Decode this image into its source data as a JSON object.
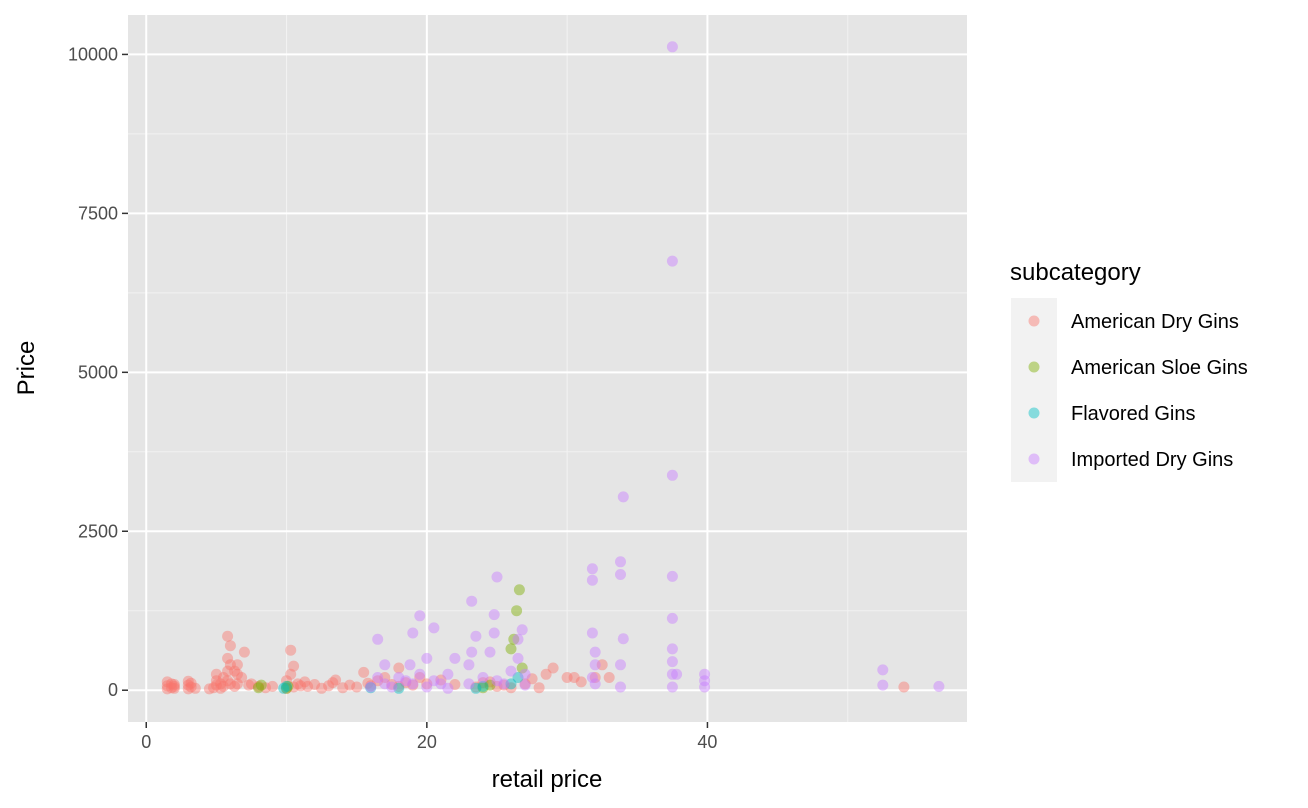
{
  "chart_data": {
    "type": "scatter",
    "xlabel": "retail price",
    "ylabel": "Price",
    "xlim": [
      -1.3,
      58.5
    ],
    "ylim": [
      -500,
      10620
    ],
    "x_ticks": [
      0,
      20,
      40
    ],
    "x_tick_labels": [
      "0",
      "20",
      "40"
    ],
    "y_ticks": [
      0,
      2500,
      5000,
      7500,
      10000
    ],
    "y_tick_labels": [
      "0",
      "2500",
      "5000",
      "7500",
      "10000"
    ],
    "grid": true,
    "panel_background": "#e5e5e5",
    "legend": {
      "title": "subcategory",
      "placement": "right",
      "items": [
        {
          "label": "American Dry Gins",
          "color": "#f8766d"
        },
        {
          "label": "American Sloe Gins",
          "color": "#7cae00"
        },
        {
          "label": "Flavored Gins",
          "color": "#00bfc4"
        },
        {
          "label": "Imported Dry Gins",
          "color": "#c77cff"
        }
      ]
    },
    "series": [
      {
        "name": "American Dry Gins",
        "color": "#f8766d",
        "x": [
          1.5,
          1.5,
          1.5,
          1.8,
          1.8,
          2.0,
          2.0,
          2.0,
          3.0,
          3.0,
          3.0,
          3.2,
          3.2,
          3.5,
          4.5,
          4.8,
          5.0,
          5.0,
          5.0,
          5.3,
          5.3,
          5.5,
          5.5,
          5.8,
          5.8,
          5.8,
          5.8,
          6.0,
          6.0,
          6.0,
          6.3,
          6.3,
          6.5,
          6.5,
          6.5,
          6.8,
          7.0,
          7.3,
          7.5,
          8.0,
          8.5,
          9.0,
          10.0,
          10.0,
          10.3,
          10.3,
          10.5,
          10.5,
          10.8,
          11.0,
          11.3,
          11.5,
          12.0,
          12.5,
          13.0,
          13.3,
          13.5,
          14.0,
          14.5,
          15.0,
          15.5,
          15.8,
          16.0,
          16.5,
          17.0,
          17.5,
          18.0,
          18.0,
          18.5,
          19.0,
          19.5,
          20.0,
          21.0,
          22.0,
          23.5,
          24.0,
          24.5,
          25.0,
          25.5,
          26.0,
          27.0,
          27.5,
          28.0,
          28.5,
          29.0,
          30.0,
          30.5,
          31.0,
          32.0,
          32.5,
          33.0,
          54.0
        ],
        "y": [
          20,
          70,
          130,
          40,
          100,
          30,
          60,
          90,
          20,
          80,
          140,
          50,
          110,
          30,
          20,
          40,
          80,
          150,
          250,
          30,
          100,
          60,
          200,
          150,
          300,
          500,
          850,
          100,
          400,
          700,
          60,
          300,
          100,
          250,
          400,
          200,
          600,
          80,
          100,
          60,
          40,
          60,
          30,
          150,
          250,
          630,
          50,
          380,
          100,
          70,
          130,
          60,
          90,
          30,
          70,
          120,
          160,
          40,
          80,
          50,
          280,
          110,
          70,
          150,
          200,
          90,
          60,
          350,
          120,
          80,
          200,
          100,
          160,
          90,
          50,
          120,
          130,
          60,
          80,
          40,
          100,
          180,
          40,
          250,
          350,
          200,
          200,
          130,
          200,
          400,
          200,
          50
        ]
      },
      {
        "name": "American Sloe Gins",
        "color": "#7cae00",
        "x": [
          8.0,
          8.2,
          10.0,
          10.1,
          24.0,
          24.5,
          26.0,
          26.2,
          26.4,
          26.6,
          26.8
        ],
        "y": [
          40,
          80,
          30,
          60,
          40,
          80,
          650,
          800,
          1250,
          1580,
          350
        ]
      },
      {
        "name": "Flavored Gins",
        "color": "#00bfc4",
        "x": [
          9.8,
          10.0,
          16.0,
          18.0,
          23.5,
          24.0,
          26.0,
          26.5
        ],
        "y": [
          30,
          60,
          40,
          30,
          30,
          60,
          100,
          200
        ]
      },
      {
        "name": "Imported Dry Gins",
        "color": "#c77cff",
        "x": [
          16.0,
          16.5,
          16.5,
          17.0,
          17.0,
          17.5,
          18.0,
          18.5,
          18.8,
          19.0,
          19.0,
          19.5,
          19.5,
          20.0,
          20.0,
          20.5,
          20.5,
          21.0,
          21.5,
          21.5,
          22.0,
          23.0,
          23.0,
          23.2,
          23.2,
          23.5,
          24.0,
          24.5,
          24.8,
          24.8,
          25.0,
          25.0,
          25.5,
          26.0,
          26.5,
          26.5,
          26.8,
          27.0,
          27.0,
          31.8,
          31.8,
          31.8,
          31.8,
          32.0,
          32.0,
          32.0,
          33.8,
          33.8,
          33.8,
          33.8,
          34.0,
          34.0,
          37.5,
          37.5,
          37.5,
          37.5,
          37.5,
          37.5,
          37.5,
          37.5,
          37.5,
          37.8,
          39.8,
          39.8,
          39.8,
          52.5,
          52.5,
          56.5
        ],
        "y": [
          50,
          200,
          800,
          100,
          400,
          50,
          200,
          150,
          400,
          100,
          900,
          250,
          1170,
          50,
          500,
          150,
          980,
          100,
          30,
          250,
          500,
          100,
          400,
          1400,
          600,
          850,
          200,
          600,
          900,
          1190,
          1780,
          150,
          100,
          300,
          500,
          800,
          950,
          250,
          80,
          200,
          900,
          1730,
          1910,
          100,
          400,
          600,
          50,
          400,
          1820,
          2020,
          810,
          3040,
          50,
          250,
          450,
          650,
          1130,
          1790,
          3380,
          6750,
          10120,
          250,
          50,
          150,
          250,
          80,
          320,
          60
        ]
      }
    ]
  }
}
